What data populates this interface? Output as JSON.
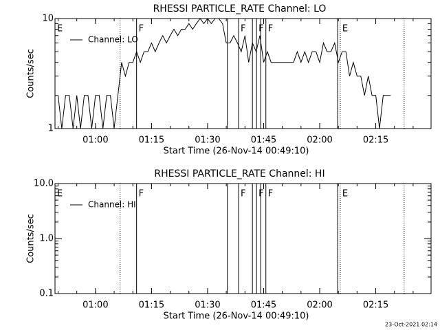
{
  "chart_data": [
    {
      "type": "line",
      "title": "RHESSI PARTICLE_RATE Channel: LO",
      "xlabel": "Start Time (26-Nov-14 00:49:10)",
      "ylabel": "Counts/sec",
      "xlim": [
        49.17,
        149.8
      ],
      "xticks": [
        {
          "value": 60,
          "label": "01:00"
        },
        {
          "value": 75,
          "label": "01:15"
        },
        {
          "value": 90,
          "label": "01:30"
        },
        {
          "value": 105,
          "label": "01:45"
        },
        {
          "value": 120,
          "label": "02:00"
        },
        {
          "value": 135,
          "label": "02:15"
        }
      ],
      "ylim": [
        1,
        10
      ],
      "yticks": [
        1,
        10
      ],
      "log_y": true,
      "x": [
        50,
        51,
        52,
        53,
        54,
        55,
        56,
        57,
        58,
        59,
        60,
        61,
        62,
        63,
        64,
        65,
        66,
        67,
        68,
        69,
        70,
        71,
        72,
        73,
        74,
        75,
        76,
        77,
        78,
        79,
        80,
        81,
        82,
        83,
        84,
        85,
        86,
        87,
        88,
        89,
        90,
        91,
        92,
        93,
        94,
        95,
        96,
        97,
        98,
        99,
        100,
        101,
        102,
        103,
        104,
        105,
        106,
        107,
        108,
        109,
        110,
        111,
        112,
        113,
        114,
        115,
        116,
        117,
        118,
        119,
        120,
        121,
        122,
        123,
        124,
        125,
        126,
        127,
        128,
        129,
        130,
        131,
        132,
        133,
        134,
        135,
        136,
        137,
        138,
        139
      ],
      "series": [
        {
          "name": "Channel: LO",
          "color": "#000000",
          "values": [
            2,
            1,
            2,
            2,
            1,
            2,
            1,
            2,
            2,
            1,
            2,
            2,
            1,
            2,
            2,
            1,
            2,
            4,
            3,
            4,
            4,
            5,
            4,
            5,
            5,
            6,
            5,
            6,
            7,
            6,
            7,
            8,
            7,
            8,
            8,
            9,
            8,
            9,
            10,
            9,
            10,
            9,
            10,
            10,
            9,
            6,
            6,
            7,
            6,
            5,
            7,
            4,
            6,
            5,
            7,
            4,
            5,
            4,
            4,
            4,
            4,
            4,
            4,
            4,
            5,
            4,
            5,
            4,
            5,
            5,
            4,
            6,
            5,
            5,
            6,
            4,
            5,
            5,
            3,
            4,
            3,
            3,
            2,
            3,
            2,
            2,
            1,
            2,
            2,
            2
          ]
        }
      ],
      "flags": [
        {
          "x": 49.17,
          "label": "E",
          "style": "none"
        },
        {
          "x": 66.6,
          "style": "dotted"
        },
        {
          "x": 71.0,
          "label": "F",
          "style": "solid"
        },
        {
          "x": 95.3,
          "style": "solid"
        },
        {
          "x": 98.3,
          "label": "F",
          "style": "solid"
        },
        {
          "x": 102.0,
          "style": "solid"
        },
        {
          "x": 103.1,
          "label": "F",
          "style": "solid"
        },
        {
          "x": 104.2,
          "style": "solid"
        },
        {
          "x": 105.6,
          "label": "F",
          "style": "solid"
        },
        {
          "x": 124.8,
          "style": "solid"
        },
        {
          "x": 125.5,
          "label": "E",
          "style": "dotted"
        },
        {
          "x": 142.6,
          "style": "dotted"
        }
      ]
    },
    {
      "type": "line",
      "title": "RHESSI PARTICLE_RATE Channel: HI",
      "xlabel": "Start Time (26-Nov-14 00:49:10)",
      "ylabel": "Counts/sec",
      "xlim": [
        49.17,
        149.8
      ],
      "xticks": [
        {
          "value": 60,
          "label": "01:00"
        },
        {
          "value": 75,
          "label": "01:15"
        },
        {
          "value": 90,
          "label": "01:30"
        },
        {
          "value": 105,
          "label": "01:45"
        },
        {
          "value": 120,
          "label": "02:00"
        },
        {
          "value": 135,
          "label": "02:15"
        }
      ],
      "ylim": [
        0.1,
        10
      ],
      "yticks": [
        0.1,
        {
          "value": 1,
          "label": "1.0"
        },
        {
          "value": 10,
          "label": "10.0"
        }
      ],
      "log_y": true,
      "x": [],
      "series": [
        {
          "name": "Channel: HI",
          "color": "#000000",
          "values": []
        }
      ],
      "flags": [
        {
          "x": 49.17,
          "label": "E",
          "style": "none"
        },
        {
          "x": 66.6,
          "style": "dotted"
        },
        {
          "x": 71.0,
          "label": "F",
          "style": "solid"
        },
        {
          "x": 95.3,
          "style": "solid"
        },
        {
          "x": 98.3,
          "label": "F",
          "style": "solid"
        },
        {
          "x": 102.0,
          "style": "solid"
        },
        {
          "x": 103.1,
          "label": "F",
          "style": "solid"
        },
        {
          "x": 104.2,
          "style": "solid"
        },
        {
          "x": 105.6,
          "label": "F",
          "style": "solid"
        },
        {
          "x": 124.8,
          "style": "solid"
        },
        {
          "x": 125.5,
          "label": "E",
          "style": "dotted"
        },
        {
          "x": 142.6,
          "style": "dotted"
        }
      ]
    }
  ],
  "footer": "23-Oct-2021 02:14"
}
